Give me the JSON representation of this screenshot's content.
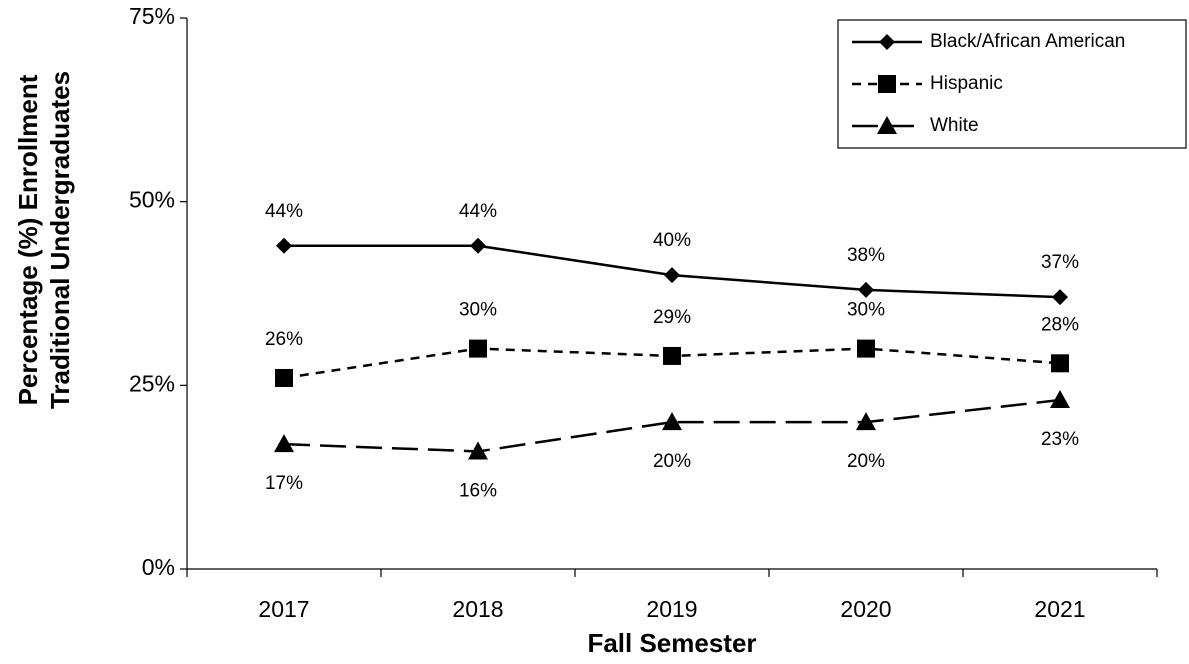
{
  "chart_data": {
    "type": "line",
    "x_label": "Fall Semester",
    "y_label": [
      "Percentage (%) Enrollment",
      "Traditional Undergraduates"
    ],
    "categories": [
      "2017",
      "2018",
      "2019",
      "2020",
      "2021"
    ],
    "series": [
      {
        "name": "Black/African American",
        "color": "#000000",
        "dash": "solid",
        "marker": "diamond",
        "values": [
          44,
          44,
          40,
          38,
          37
        ],
        "value_labels": [
          "44%",
          "44%",
          "40%",
          "38%",
          "37%"
        ]
      },
      {
        "name": "Hispanic",
        "color": "#000000",
        "dash": "dashed",
        "marker": "square",
        "values": [
          26,
          30,
          29,
          30,
          28
        ],
        "value_labels": [
          "26%",
          "30%",
          "29%",
          "30%",
          "28%"
        ]
      },
      {
        "name": "White",
        "color": "#000000",
        "dash": "longdash",
        "marker": "triangle",
        "values": [
          17,
          16,
          20,
          20,
          23
        ],
        "value_labels": [
          "17%",
          "16%",
          "20%",
          "20%",
          "23%"
        ]
      }
    ],
    "ylim": [
      0,
      75
    ],
    "yticks": [
      {
        "value": 0,
        "label": "0%"
      },
      {
        "value": 25,
        "label": "25%"
      },
      {
        "value": 50,
        "label": "50%"
      },
      {
        "value": 75,
        "label": "75%"
      }
    ],
    "grid": false,
    "legend": "upper right"
  }
}
